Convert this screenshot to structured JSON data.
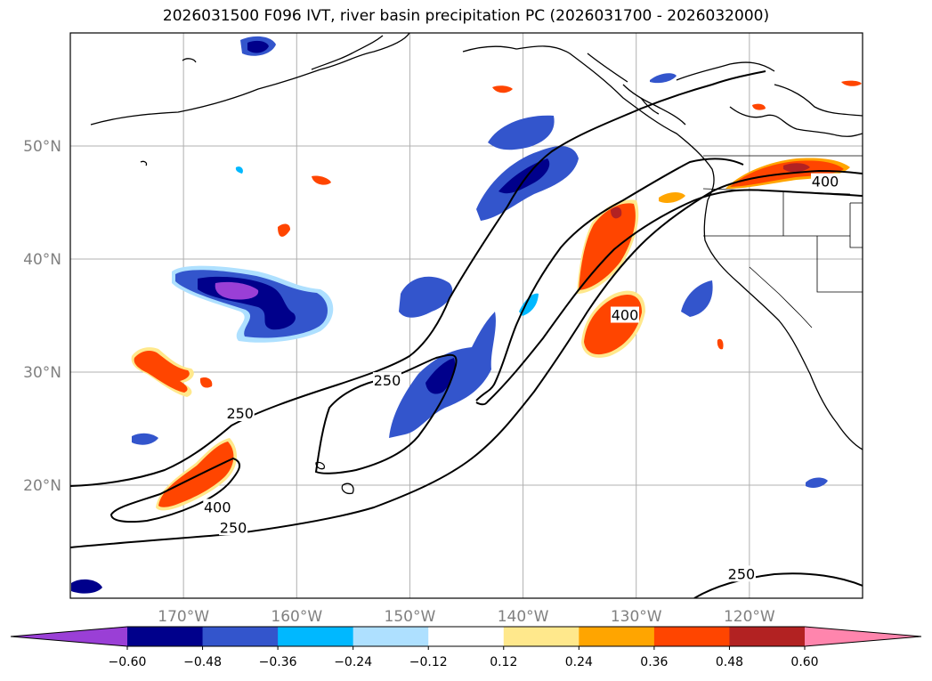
{
  "title": "2026031500 F096 IVT, river basin precipitation PC (2026031700 - 2026032000)",
  "map": {
    "lon_range": [
      -180,
      -110
    ],
    "lat_range": [
      10,
      60
    ],
    "lat_ticks": [
      {
        "value": 20,
        "label": "20°N"
      },
      {
        "value": 30,
        "label": "30°N"
      },
      {
        "value": 40,
        "label": "40°N"
      },
      {
        "value": 50,
        "label": "50°N"
      }
    ],
    "lon_ticks": [
      {
        "value": -170,
        "label": "170°W"
      },
      {
        "value": -160,
        "label": "160°W"
      },
      {
        "value": -150,
        "label": "150°W"
      },
      {
        "value": -140,
        "label": "140°W"
      },
      {
        "value": -130,
        "label": "130°W"
      },
      {
        "value": -120,
        "label": "120°W"
      }
    ],
    "gridlines": true,
    "ivt_contour_labels": [
      {
        "text": "250",
        "lon": -165,
        "lat": 26.3
      },
      {
        "text": "250",
        "lon": -152,
        "lat": 29.2
      },
      {
        "text": "400",
        "lon": -167,
        "lat": 18
      },
      {
        "text": "250",
        "lon": -165.6,
        "lat": 16.2
      },
      {
        "text": "400",
        "lon": -131,
        "lat": 35
      },
      {
        "text": "400",
        "lon": -113.3,
        "lat": 46.8
      },
      {
        "text": "250",
        "lon": -120.7,
        "lat": 12.1
      }
    ]
  },
  "colorbar": {
    "colors": [
      "#9a3fd6",
      "#00008b",
      "#3355cc",
      "#00b8ff",
      "#aee0ff",
      "#ffffff",
      "#ffe88c",
      "#ffa500",
      "#ff4500",
      "#b22222",
      "#ff85ad"
    ],
    "tick_labels": [
      "−0.60",
      "−0.48",
      "−0.36",
      "−0.24",
      "−0.12",
      "0.12",
      "0.24",
      "0.36",
      "0.48",
      "0.60"
    ]
  }
}
